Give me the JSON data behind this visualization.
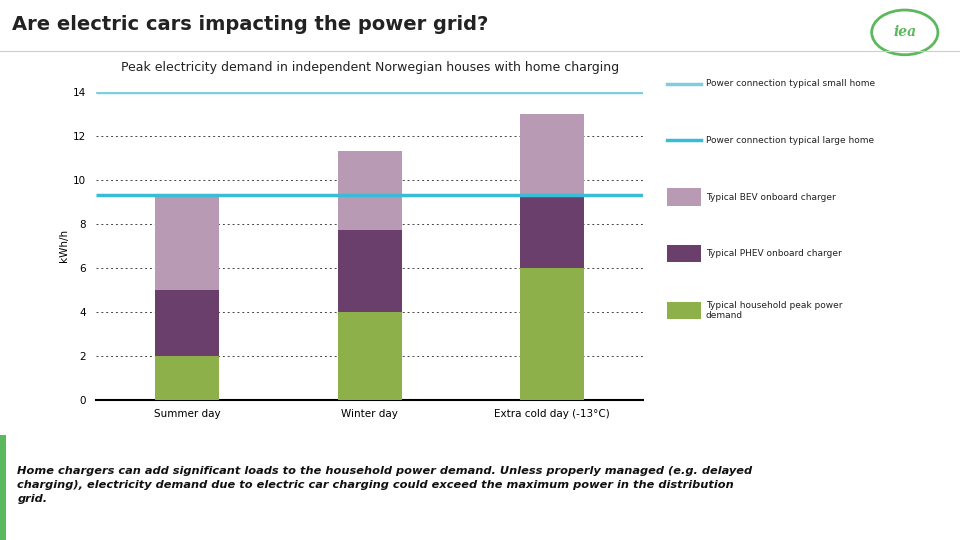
{
  "title_main": "Are electric cars impacting the power grid?",
  "title_sub": "Peak electricity demand in independent Norwegian houses with home charging",
  "categories": [
    "Summer day",
    "Winter day",
    "Extra cold day (-13°C)"
  ],
  "household_peak": [
    2.0,
    4.0,
    6.0
  ],
  "phev_charger": [
    3.0,
    3.7,
    3.3
  ],
  "bev_charger": [
    4.3,
    3.6,
    3.7
  ],
  "line_small_home": 14.0,
  "line_large_home": 9.3,
  "color_household": "#8db04a",
  "color_phev": "#6b3f6b",
  "color_bev": "#b89ab5",
  "color_line_small": "#7ecfdb",
  "color_line_large": "#3bbcd6",
  "ylabel": "kWh/h",
  "ylim": [
    0,
    14
  ],
  "yticks": [
    0,
    2,
    4,
    6,
    8,
    10,
    12,
    14
  ],
  "legend_small": "Power connection typical small home",
  "legend_large": "Power connection typical large home",
  "legend_bev": "Typical BEV onboard charger",
  "legend_phev": "Typical PHEV onboard charger",
  "legend_household": "Typical household peak power\ndemand",
  "footnote_line1": "Home chargers can add significant loads to the household power demand. Unless properly managed (e.g. delayed",
  "footnote_line2": "charging), electricity demand due to electric car charging could exceed the maximum power in the distribution",
  "footnote_line3": "grid.",
  "bar_width": 0.35,
  "background_color": "#ffffff",
  "grid_color": "#444444",
  "iea_circle_color": "#5cb85c"
}
